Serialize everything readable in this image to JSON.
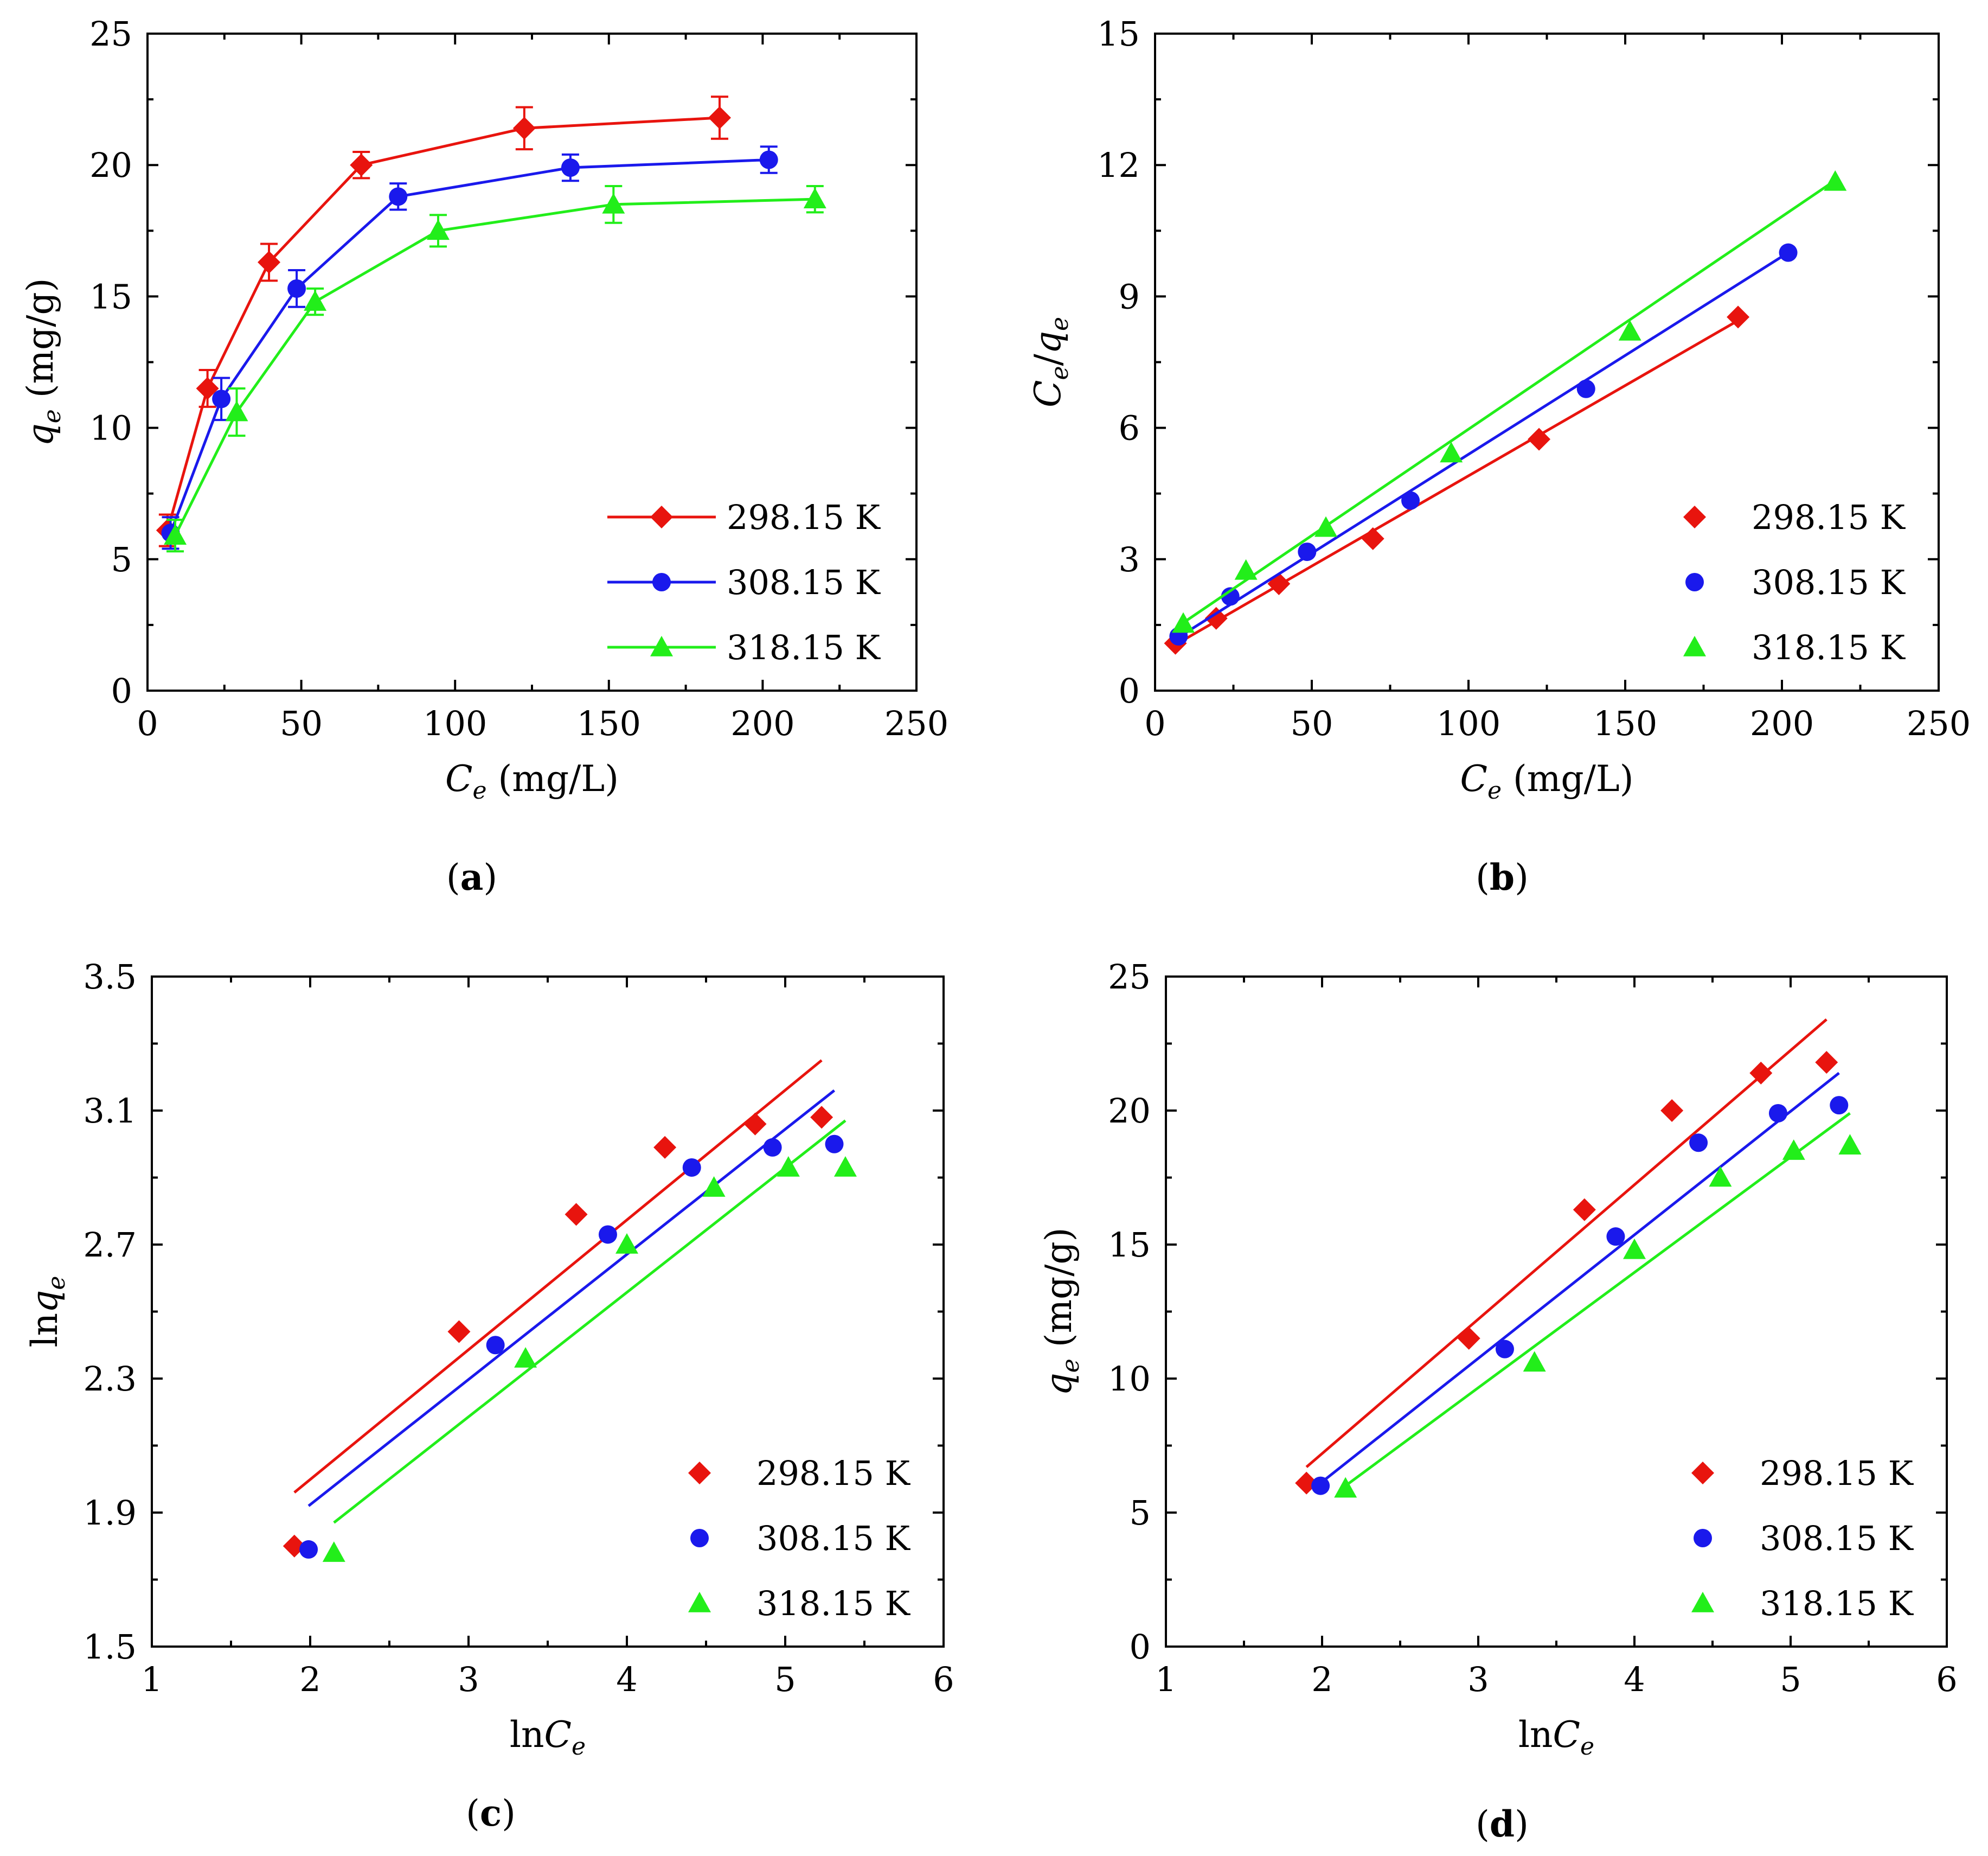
{
  "figure": {
    "series_names": [
      "298.15 K",
      "308.15 K",
      "318.15 K"
    ],
    "series_colors": [
      "#e8140e",
      "#1a19ec",
      "#22ee1a"
    ],
    "series_markers": [
      "diamond",
      "circle",
      "triangle"
    ]
  },
  "chart_data": [
    {
      "type": "line",
      "panel": "a",
      "xlabel": {
        "main": "C",
        "sub": "e",
        "rest": " (mg/L)"
      },
      "ylabel": {
        "main": "q",
        "sub": "e",
        "rest": " (mg/g)"
      },
      "xlim": [
        0,
        250
      ],
      "ylim": [
        0,
        25
      ],
      "xticks": [
        0,
        50,
        100,
        150,
        200,
        250
      ],
      "yticks": [
        0,
        5,
        10,
        15,
        20,
        25
      ],
      "legend": "bottom-right",
      "legend_style": "line-marker",
      "error_bars": true,
      "fit_lines": false,
      "series": [
        {
          "name": "298.15 K",
          "x": [
            6.5,
            19.5,
            39.5,
            69.5,
            122.5,
            186
          ],
          "y": [
            6.1,
            11.5,
            16.3,
            20.0,
            21.4,
            21.8
          ],
          "err": [
            0.6,
            0.7,
            0.7,
            0.5,
            0.8,
            0.8
          ]
        },
        {
          "name": "308.15 K",
          "x": [
            7.5,
            24,
            48.5,
            81.5,
            137.5,
            202
          ],
          "y": [
            6.0,
            11.1,
            15.3,
            18.8,
            19.9,
            20.2
          ],
          "err": [
            0.6,
            0.8,
            0.7,
            0.5,
            0.5,
            0.5
          ]
        },
        {
          "name": "318.15 K",
          "x": [
            9,
            29,
            54.5,
            94.5,
            151.5,
            217
          ],
          "y": [
            5.9,
            10.6,
            14.8,
            17.5,
            18.5,
            18.7
          ],
          "err": [
            0.6,
            0.9,
            0.5,
            0.6,
            0.7,
            0.5
          ]
        }
      ]
    },
    {
      "type": "scatter",
      "panel": "b",
      "xlabel": {
        "main": "C",
        "sub": "e",
        "rest": " (mg/L)"
      },
      "ylabel": {
        "main": "C",
        "sub": "e",
        "rest": "/q",
        "sub2": "e"
      },
      "xlim": [
        0,
        250
      ],
      "ylim": [
        0,
        15
      ],
      "xticks": [
        0,
        50,
        100,
        150,
        200,
        250
      ],
      "yticks": [
        0,
        3,
        6,
        9,
        12,
        15
      ],
      "legend": "bottom-right",
      "legend_style": "marker",
      "series": [
        {
          "name": "298.15 K",
          "x": [
            6.5,
            19.5,
            39.5,
            69.5,
            122.5,
            186
          ],
          "y": [
            1.08,
            1.65,
            2.44,
            3.47,
            5.74,
            8.53
          ],
          "fit": [
            [
              6.5,
              1.05
            ],
            [
              186,
              8.45
            ]
          ]
        },
        {
          "name": "308.15 K",
          "x": [
            7.5,
            24,
            48.5,
            81.5,
            137.5,
            202
          ],
          "y": [
            1.24,
            2.15,
            3.17,
            4.34,
            6.89,
            10.0
          ],
          "fit": [
            [
              7.5,
              1.22
            ],
            [
              202,
              10.0
            ]
          ]
        },
        {
          "name": "318.15 K",
          "x": [
            9,
            29,
            54.5,
            94.5,
            151.5,
            217
          ],
          "y": [
            1.53,
            2.74,
            3.72,
            5.42,
            8.2,
            11.62
          ],
          "fit": [
            [
              9,
              1.55
            ],
            [
              217,
              11.65
            ]
          ]
        }
      ]
    },
    {
      "type": "scatter",
      "panel": "c",
      "xlabel": {
        "main": "lnC",
        "sub": "e",
        "rest": ""
      },
      "ylabel": {
        "main": "lnq",
        "sub": "e",
        "rest": ""
      },
      "xlim": [
        1,
        6
      ],
      "ylim": [
        1.5,
        3.5
      ],
      "xticks": [
        1,
        2,
        3,
        4,
        5,
        6
      ],
      "yticks": [
        1.5,
        1.9,
        2.3,
        2.7,
        3.1,
        3.5
      ],
      "legend": "bottom-right",
      "legend_style": "marker",
      "series": [
        {
          "name": "298.15 K",
          "x": [
            1.9,
            2.94,
            3.68,
            4.24,
            4.81,
            5.23
          ],
          "y": [
            1.8,
            2.44,
            2.79,
            2.99,
            3.06,
            3.08
          ],
          "fit": [
            [
              1.9,
              1.96
            ],
            [
              5.23,
              3.25
            ]
          ]
        },
        {
          "name": "308.15 K",
          "x": [
            1.99,
            3.17,
            3.88,
            4.41,
            4.92,
            5.31
          ],
          "y": [
            1.79,
            2.4,
            2.73,
            2.93,
            2.99,
            3.0
          ],
          "fit": [
            [
              1.99,
              1.92
            ],
            [
              5.31,
              3.16
            ]
          ]
        },
        {
          "name": "318.15 K",
          "x": [
            2.15,
            3.36,
            4.0,
            4.55,
            5.02,
            5.38
          ],
          "y": [
            1.78,
            2.36,
            2.7,
            2.87,
            2.93,
            2.93
          ],
          "fit": [
            [
              2.15,
              1.87
            ],
            [
              5.38,
              3.07
            ]
          ]
        }
      ]
    },
    {
      "type": "scatter",
      "panel": "d",
      "xlabel": {
        "main": "lnC",
        "sub": "e",
        "rest": ""
      },
      "ylabel": {
        "main": "q",
        "sub": "e",
        "rest": " (mg/g)"
      },
      "xlim": [
        1,
        6
      ],
      "ylim": [
        0,
        25
      ],
      "xticks": [
        1,
        2,
        3,
        4,
        5,
        6
      ],
      "yticks": [
        0,
        5,
        10,
        15,
        20,
        25
      ],
      "legend": "bottom-right",
      "legend_style": "marker",
      "series": [
        {
          "name": "298.15 K",
          "x": [
            1.9,
            2.94,
            3.68,
            4.24,
            4.81,
            5.23
          ],
          "y": [
            6.1,
            11.5,
            16.3,
            20.0,
            21.4,
            21.8
          ],
          "fit": [
            [
              1.9,
              6.7
            ],
            [
              5.23,
              23.4
            ]
          ]
        },
        {
          "name": "308.15 K",
          "x": [
            1.99,
            3.17,
            3.88,
            4.41,
            4.92,
            5.31
          ],
          "y": [
            6.0,
            11.1,
            15.3,
            18.8,
            19.9,
            20.2
          ],
          "fit": [
            [
              1.99,
              6.1
            ],
            [
              5.31,
              21.4
            ]
          ]
        },
        {
          "name": "318.15 K",
          "x": [
            2.15,
            3.36,
            4.0,
            4.55,
            5.02,
            5.38
          ],
          "y": [
            5.9,
            10.6,
            14.8,
            17.5,
            18.5,
            18.7
          ],
          "fit": [
            [
              2.15,
              6.0
            ],
            [
              5.38,
              19.9
            ]
          ]
        }
      ]
    }
  ],
  "panel_labels": [
    "a",
    "b",
    "c",
    "d"
  ]
}
